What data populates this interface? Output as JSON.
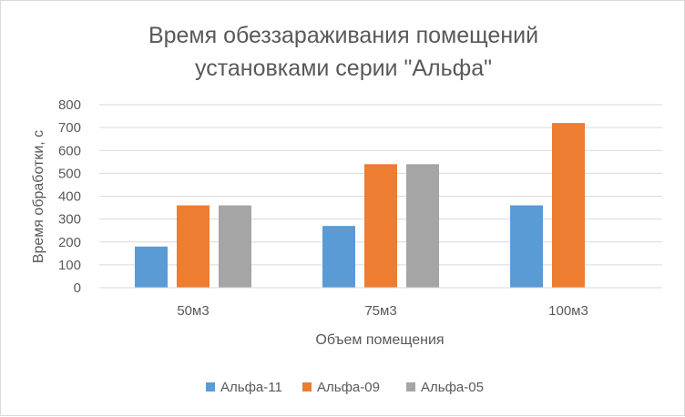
{
  "chart_data": {
    "type": "bar",
    "title_lines": [
      "Время обеззараживания помещений",
      "установками серии \"Альфа\""
    ],
    "xlabel": "Объем помещения",
    "ylabel": "Время обработки, с",
    "categories": [
      "50м3",
      "75м3",
      "100м3"
    ],
    "series": [
      {
        "name": "Альфа-11",
        "color": "#5b9bd5",
        "values": [
          180,
          270,
          360
        ]
      },
      {
        "name": "Альфа-09",
        "color": "#ed7d31",
        "values": [
          360,
          540,
          720
        ]
      },
      {
        "name": "Альфа-05",
        "color": "#a5a5a5",
        "values": [
          360,
          540,
          null
        ]
      }
    ],
    "ylim": [
      0,
      800
    ],
    "ytick_step": 100,
    "yticks": [
      "0",
      "100",
      "200",
      "300",
      "400",
      "500",
      "600",
      "700",
      "800"
    ],
    "grid": true,
    "legend_position": "bottom"
  }
}
